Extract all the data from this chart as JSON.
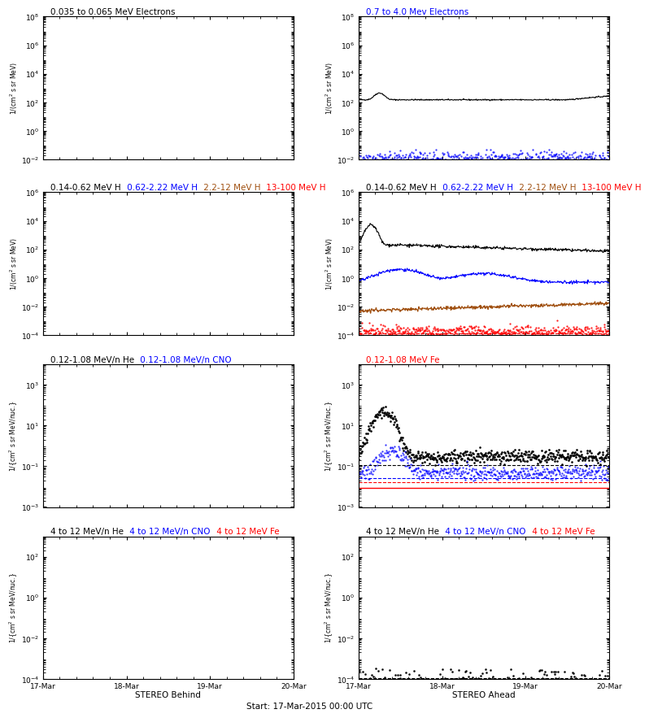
{
  "panels": {
    "r1l": {
      "title": [
        {
          "text": "0.035 to 0.065 MeV Electrons",
          "color": "black"
        }
      ],
      "ylim": [
        0.01,
        100000000.0
      ],
      "yticks": [
        0.01,
        1.0,
        100.0,
        10000.0,
        1000000.0,
        100000000.0
      ],
      "ylabel": "1/(cm2 s sr MeV)",
      "has_data": false
    },
    "r1r": {
      "title": [
        {
          "text": "0.7 to 4.0 Mev Electrons",
          "color": "blue"
        }
      ],
      "ylim": [
        0.01,
        100000000.0
      ],
      "yticks": [
        0.01,
        1.0,
        100.0,
        10000.0,
        1000000.0,
        100000000.0
      ],
      "ylabel": "1/(cm2 s sr MeV)",
      "has_data": true
    },
    "r2l": {
      "title": [
        {
          "text": "0.14-0.62 MeV H",
          "color": "black"
        },
        {
          "text": " 0.62-2.22 MeV H",
          "color": "blue"
        },
        {
          "text": " 2.2-12 MeV H",
          "color": "#a05010"
        },
        {
          "text": " 13-100 MeV H",
          "color": "red"
        }
      ],
      "ylim": [
        0.0001,
        1000000.0
      ],
      "yticks": [
        0.0001,
        0.01,
        1.0,
        100.0,
        10000.0,
        1000000.0
      ],
      "ylabel": "1/(cm2 s sr MeV)",
      "has_data": false
    },
    "r2r": {
      "title": [
        {
          "text": "0.14-0.62 MeV H",
          "color": "black"
        },
        {
          "text": " 0.62-2.22 MeV H",
          "color": "blue"
        },
        {
          "text": " 2.2-12 MeV H",
          "color": "#a05010"
        },
        {
          "text": " 13-100 MeV H",
          "color": "red"
        }
      ],
      "ylim": [
        0.0001,
        1000000.0
      ],
      "yticks": [
        0.0001,
        0.01,
        1.0,
        100.0,
        10000.0,
        1000000.0
      ],
      "ylabel": "1/(cm2 s sr MeV)",
      "has_data": true
    },
    "r3l": {
      "title": [
        {
          "text": "0.12-1.08 MeV/n He",
          "color": "black"
        },
        {
          "text": " 0.12-1.08 MeV/n CNO",
          "color": "blue"
        }
      ],
      "ylim": [
        0.001,
        10000.0
      ],
      "yticks": [
        0.001,
        0.1,
        10.0,
        1000.0
      ],
      "ylabel": "1/(cm2 s sr MeV/nuc.)",
      "has_data": false
    },
    "r3r": {
      "title": [
        {
          "text": "0.12-1.08 MeV Fe",
          "color": "red"
        }
      ],
      "ylim": [
        0.001,
        10000.0
      ],
      "yticks": [
        0.001,
        0.1,
        10.0,
        1000.0
      ],
      "ylabel": "1/(cm2 s sr MeV/nuc.)",
      "has_data": true
    },
    "r4l": {
      "title": [
        {
          "text": "4 to 12 MeV/n He",
          "color": "black"
        },
        {
          "text": " 4 to 12 MeV/n CNO",
          "color": "blue"
        },
        {
          "text": " 4 to 12 MeV Fe",
          "color": "red"
        }
      ],
      "ylim": [
        0.0001,
        1000.0
      ],
      "yticks": [
        0.0001,
        0.01,
        1.0,
        100.0
      ],
      "ylabel": "1/(cm2 s sr MeV/nuc.)",
      "has_data": false
    },
    "r4r": {
      "title": [
        {
          "text": "4 to 12 MeV/n He",
          "color": "black"
        },
        {
          "text": " 4 to 12 MeV/n CNO",
          "color": "blue"
        },
        {
          "text": " 4 to 12 MeV Fe",
          "color": "red"
        }
      ],
      "ylim": [
        0.0001,
        1000.0
      ],
      "yticks": [
        0.0001,
        0.01,
        1.0,
        100.0
      ],
      "ylabel": "1/(cm2 s sr MeV/nuc.)",
      "has_data": true
    }
  },
  "xtick_labels": [
    "17-Mar",
    "18-Mar",
    "19-Mar",
    "20-Mar"
  ],
  "xlabel_left": "STEREO Behind",
  "xlabel_right": "STEREO Ahead",
  "xlabel_center": "Start: 17-Mar-2015 00:00 UTC",
  "seed": 42,
  "N": 500
}
